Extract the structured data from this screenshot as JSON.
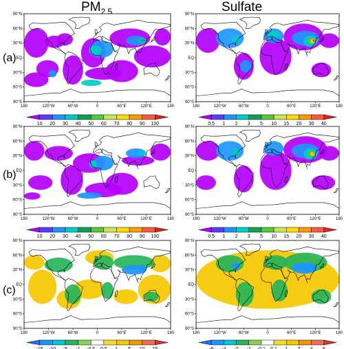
{
  "columns": [
    {
      "title_main": "PM",
      "title_sub": "2.5"
    },
    {
      "title_main": "Sulfate",
      "title_sub": ""
    }
  ],
  "rows": [
    "(a)",
    "(b)",
    "(c)"
  ],
  "lat_ticks": [
    "90°N",
    "60°N",
    "30°N",
    "EQ",
    "30°S",
    "60°S",
    "90°S"
  ],
  "lon_ticks": [
    "180",
    "120°W",
    "60°W",
    "0",
    "60°E",
    "120°E",
    "180"
  ],
  "colorbars": {
    "pm_abs": {
      "labels": [
        "10",
        "20",
        "30",
        "40",
        "50",
        "60",
        "70",
        "80",
        "90",
        "100"
      ],
      "colors": [
        "#b400ff",
        "#5a3cff",
        "#1e96ff",
        "#00cdc8",
        "#0fa050",
        "#55c83c",
        "#c8e650",
        "#ffdc00",
        "#ff9a00",
        "#ff5a3c",
        "#e61e1e"
      ]
    },
    "sulfate_abs": {
      "labels": [
        "0.5",
        "1",
        "2",
        "3",
        "5",
        "10",
        "15",
        "20",
        "30",
        "40"
      ],
      "colors": [
        "#b400ff",
        "#5a3cff",
        "#1e96ff",
        "#00cdc8",
        "#0fa050",
        "#55c83c",
        "#c8e650",
        "#ffdc00",
        "#ff9a00",
        "#ff5a3c",
        "#e61e1e"
      ]
    },
    "pm_diff": {
      "labels": [
        "-15",
        "-10",
        "-5",
        "-1",
        "-0.5",
        "0.5",
        "1",
        "5",
        "10",
        "15"
      ],
      "colors": [
        "#1e6eff",
        "#1e96ff",
        "#00c8dc",
        "#28b45a",
        "#8cd250",
        "#ffffff",
        "#f5dc28",
        "#f5c800",
        "#f59600",
        "#f06e50",
        "#dc3232"
      ]
    },
    "sulfate_diff": {
      "labels": [
        "-6",
        "-4",
        "-2",
        "-1",
        "-0.1",
        "0.1",
        "1",
        "2",
        "4",
        "6"
      ],
      "colors": [
        "#1e6eff",
        "#1e96ff",
        "#00c8dc",
        "#28b45a",
        "#8cd250",
        "#ffffff",
        "#f5dc28",
        "#f5c800",
        "#f59600",
        "#f06e50",
        "#dc3232"
      ]
    }
  },
  "colors": {
    "land": "#ffffff",
    "coast": "#000000",
    "purple": "#b400ff",
    "blue": "#1e96ff",
    "cyan": "#00cdc8",
    "green": "#0fa050",
    "lightgreen": "#55c83c",
    "yellow": "#ffdc00",
    "orange": "#ff9a00",
    "red": "#e61e1e",
    "diff_yellow": "#f5c800",
    "diff_green": "#28b45a",
    "diff_blue": "#1e96ff"
  }
}
